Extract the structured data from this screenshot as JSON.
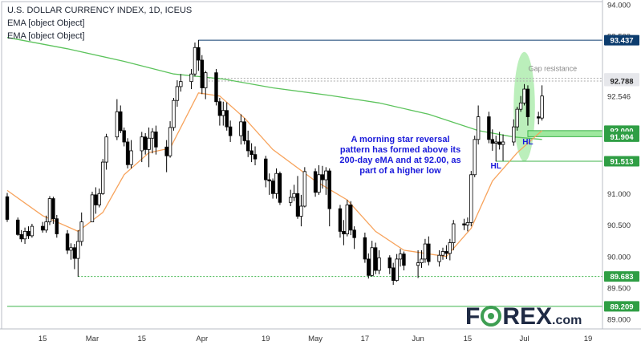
{
  "header": {
    "title": "U.S. DOLLAR CURRENCY INDEX, 1D, ICEUS",
    "indicator_1": "EMA [object Object]",
    "indicator_2": "EMA [object Object]"
  },
  "annotation": "A morning star reversal pattern has formed above its 200-day eMA and at 92.00, as part of a higher low",
  "logo": {
    "part1": "F",
    "part2": "REX",
    "suffix": ".com"
  },
  "colors": {
    "up_candle": "#ffffff",
    "down_candle": "#000000",
    "candle_border": "#000000",
    "ema_fast": "#f7a35c",
    "ema_slow": "#5cc35c",
    "level_line": "#0c3c6e",
    "support_line": "#3cb34a",
    "gap_line": "#aaaaaa",
    "highlight": "#9ee89e",
    "annotation_text": "#1a1adb",
    "logo_green": "#3d9e52"
  },
  "chart_data": {
    "type": "candlestick",
    "y_axis_side": "right",
    "ylim": [
      88.85,
      94.05
    ],
    "y_ticks": [
      "94.000",
      "93.500",
      "92.546",
      "91.000",
      "90.500",
      "90.000",
      "89.500",
      "89.000"
    ],
    "x_ticks": [
      "15",
      "Mar",
      "15",
      "Apr",
      "19",
      "May",
      "17",
      "Jun",
      "15",
      "Jul",
      "19"
    ],
    "x_tick_dates": [
      "2021-02-15",
      "2021-03-01",
      "2021-03-15",
      "2021-04-01",
      "2021-04-19",
      "2021-05-03",
      "2021-05-17",
      "2021-06-01",
      "2021-06-15",
      "2021-07-01",
      "2021-07-19"
    ],
    "price_labels": [
      {
        "value": "93.437",
        "style": "navy"
      },
      {
        "value": "92.832",
        "style": "gray"
      },
      {
        "value": "92.788",
        "style": "gray"
      },
      {
        "value": "92.000",
        "style": "green"
      },
      {
        "value": "91.904",
        "style": "green"
      },
      {
        "value": "91.513",
        "style": "green"
      },
      {
        "value": "89.683",
        "style": "green"
      },
      {
        "value": "89.209",
        "style": "green"
      }
    ],
    "levels": [
      {
        "value": 93.437,
        "start": "2021-03-31",
        "style": "navy"
      },
      {
        "value": 92.832,
        "start": "2021-04-01",
        "style": "gray-dotted"
      },
      {
        "value": 92.788,
        "start": "2021-04-01",
        "style": "gray-dotted"
      },
      {
        "value": 91.513,
        "start": "2021-06-23",
        "style": "green"
      },
      {
        "value": 89.683,
        "start": "2021-02-25",
        "style": "green-dotted"
      },
      {
        "value": 89.209,
        "start": "2021-02-05",
        "style": "green"
      }
    ],
    "support_zone": {
      "top": 92.0,
      "bottom": 91.904,
      "start": "2021-07-02"
    },
    "text_labels": [
      {
        "text": "Gap resistance",
        "date": "2021-07-09",
        "value": 92.95
      },
      {
        "text": "HL",
        "date": "2021-06-23",
        "value": 91.4
      },
      {
        "text": "HL",
        "date": "2021-07-02",
        "value": 91.78
      }
    ],
    "highlight_ellipse": {
      "date": "2021-07-01",
      "value": 92.38,
      "date_start": "2021-06-29",
      "date_end": "2021-07-05"
    },
    "candles": [
      {
        "date": "2021-02-05",
        "o": 90.95,
        "h": 91.01,
        "l": 90.55,
        "c": 90.59
      },
      {
        "date": "2021-02-08",
        "o": 90.58,
        "h": 90.62,
        "l": 90.33,
        "c": 90.35
      },
      {
        "date": "2021-02-09",
        "o": 90.35,
        "h": 90.42,
        "l": 90.23,
        "c": 90.28
      },
      {
        "date": "2021-02-10",
        "o": 90.28,
        "h": 90.46,
        "l": 90.2,
        "c": 90.4
      },
      {
        "date": "2021-02-11",
        "o": 90.4,
        "h": 90.48,
        "l": 90.28,
        "c": 90.33
      },
      {
        "date": "2021-02-12",
        "o": 90.33,
        "h": 90.52,
        "l": 90.3,
        "c": 90.48
      },
      {
        "date": "2021-02-15",
        "o": 90.48,
        "h": 90.55,
        "l": 90.38,
        "c": 90.42
      },
      {
        "date": "2021-02-16",
        "o": 90.42,
        "h": 90.65,
        "l": 90.38,
        "c": 90.55
      },
      {
        "date": "2021-02-17",
        "o": 90.55,
        "h": 90.96,
        "l": 90.5,
        "c": 90.92
      },
      {
        "date": "2021-02-18",
        "o": 90.92,
        "h": 90.95,
        "l": 90.52,
        "c": 90.6
      },
      {
        "date": "2021-02-19",
        "o": 90.6,
        "h": 90.66,
        "l": 90.3,
        "c": 90.36
      },
      {
        "date": "2021-02-22",
        "o": 90.36,
        "h": 90.42,
        "l": 90.04,
        "c": 90.1
      },
      {
        "date": "2021-02-23",
        "o": 90.1,
        "h": 90.21,
        "l": 89.95,
        "c": 90.14
      },
      {
        "date": "2021-02-24",
        "o": 90.14,
        "h": 90.2,
        "l": 89.8,
        "c": 89.97
      },
      {
        "date": "2021-02-25",
        "o": 89.97,
        "h": 90.42,
        "l": 89.68,
        "c": 90.24
      },
      {
        "date": "2021-02-26",
        "o": 90.24,
        "h": 90.7,
        "l": 90.17,
        "c": 90.55
      },
      {
        "date": "2021-03-01",
        "o": 90.55,
        "h": 91.03,
        "l": 90.58,
        "c": 90.98
      },
      {
        "date": "2021-03-02",
        "o": 90.98,
        "h": 91.1,
        "l": 90.68,
        "c": 90.82
      },
      {
        "date": "2021-03-03",
        "o": 90.82,
        "h": 91.08,
        "l": 90.78,
        "c": 91.0
      },
      {
        "date": "2021-03-04",
        "o": 91.0,
        "h": 91.55,
        "l": 90.98,
        "c": 91.5
      },
      {
        "date": "2021-03-05",
        "o": 91.5,
        "h": 91.95,
        "l": 91.38,
        "c": 91.9
      },
      {
        "date": "2021-03-08",
        "o": 91.9,
        "h": 92.5,
        "l": 91.85,
        "c": 92.3
      },
      {
        "date": "2021-03-09",
        "o": 92.3,
        "h": 92.4,
        "l": 91.96,
        "c": 92.0
      },
      {
        "date": "2021-03-10",
        "o": 92.0,
        "h": 92.05,
        "l": 91.75,
        "c": 91.82
      },
      {
        "date": "2021-03-11",
        "o": 91.82,
        "h": 91.88,
        "l": 91.4,
        "c": 91.46
      },
      {
        "date": "2021-03-12",
        "o": 91.46,
        "h": 91.85,
        "l": 91.4,
        "c": 91.68
      },
      {
        "date": "2021-03-15",
        "o": 91.68,
        "h": 91.98,
        "l": 91.5,
        "c": 91.9
      },
      {
        "date": "2021-03-16",
        "o": 91.9,
        "h": 91.96,
        "l": 91.62,
        "c": 91.7
      },
      {
        "date": "2021-03-17",
        "o": 91.7,
        "h": 92.05,
        "l": 91.42,
        "c": 91.88
      },
      {
        "date": "2021-03-18",
        "o": 91.88,
        "h": 92.04,
        "l": 91.64,
        "c": 91.98
      },
      {
        "date": "2021-03-19",
        "o": 91.98,
        "h": 92.08,
        "l": 91.62,
        "c": 91.74
      },
      {
        "date": "2021-03-22",
        "o": 91.74,
        "h": 91.85,
        "l": 91.34,
        "c": 91.6
      },
      {
        "date": "2021-03-23",
        "o": 91.6,
        "h": 92.15,
        "l": 91.57,
        "c": 92.05
      },
      {
        "date": "2021-03-24",
        "o": 92.05,
        "h": 92.52,
        "l": 92.0,
        "c": 92.48
      },
      {
        "date": "2021-03-25",
        "o": 92.48,
        "h": 92.8,
        "l": 92.38,
        "c": 92.7
      },
      {
        "date": "2021-03-26",
        "o": 92.7,
        "h": 92.9,
        "l": 92.62,
        "c": 92.78
      },
      {
        "date": "2021-03-29",
        "o": 92.78,
        "h": 92.98,
        "l": 92.66,
        "c": 92.9
      },
      {
        "date": "2021-03-30",
        "o": 92.9,
        "h": 93.4,
        "l": 92.86,
        "c": 93.32
      },
      {
        "date": "2021-03-31",
        "o": 93.32,
        "h": 93.44,
        "l": 92.95,
        "c": 93.12
      },
      {
        "date": "2021-04-01",
        "o": 93.12,
        "h": 93.2,
        "l": 92.58,
        "c": 92.68
      },
      {
        "date": "2021-04-02",
        "o": 92.68,
        "h": 92.95,
        "l": 92.5,
        "c": 92.92
      },
      {
        "date": "2021-04-05",
        "o": 92.92,
        "h": 92.98,
        "l": 92.4,
        "c": 92.46
      },
      {
        "date": "2021-04-06",
        "o": 92.46,
        "h": 92.52,
        "l": 92.08,
        "c": 92.24
      },
      {
        "date": "2021-04-07",
        "o": 92.24,
        "h": 92.46,
        "l": 92.08,
        "c": 92.32
      },
      {
        "date": "2021-04-08",
        "o": 92.32,
        "h": 92.45,
        "l": 92.0,
        "c": 92.06
      },
      {
        "date": "2021-04-09",
        "o": 92.06,
        "h": 92.16,
        "l": 91.82,
        "c": 91.92
      },
      {
        "date": "2021-04-12",
        "o": 91.92,
        "h": 92.26,
        "l": 91.78,
        "c": 92.14
      },
      {
        "date": "2021-04-13",
        "o": 92.14,
        "h": 92.2,
        "l": 91.78,
        "c": 91.84
      },
      {
        "date": "2021-04-14",
        "o": 91.84,
        "h": 92.0,
        "l": 91.58,
        "c": 91.68
      },
      {
        "date": "2021-04-15",
        "o": 91.68,
        "h": 91.8,
        "l": 91.5,
        "c": 91.62
      },
      {
        "date": "2021-04-16",
        "o": 91.62,
        "h": 91.75,
        "l": 91.45,
        "c": 91.55
      },
      {
        "date": "2021-04-19",
        "o": 91.55,
        "h": 91.6,
        "l": 91.1,
        "c": 91.22
      },
      {
        "date": "2021-04-20",
        "o": 91.22,
        "h": 91.32,
        "l": 90.98,
        "c": 91.2
      },
      {
        "date": "2021-04-21",
        "o": 91.2,
        "h": 91.24,
        "l": 90.92,
        "c": 91.0
      },
      {
        "date": "2021-04-22",
        "o": 91.0,
        "h": 91.4,
        "l": 90.92,
        "c": 91.32
      },
      {
        "date": "2021-04-23",
        "o": 91.32,
        "h": 91.35,
        "l": 90.82,
        "c": 90.86
      },
      {
        "date": "2021-04-26",
        "o": 90.86,
        "h": 91.06,
        "l": 90.8,
        "c": 90.94
      },
      {
        "date": "2021-04-27",
        "o": 90.94,
        "h": 91.14,
        "l": 90.88,
        "c": 91.0
      },
      {
        "date": "2021-04-28",
        "o": 91.0,
        "h": 91.28,
        "l": 90.6,
        "c": 90.64
      },
      {
        "date": "2021-04-29",
        "o": 90.64,
        "h": 90.98,
        "l": 90.48,
        "c": 90.8
      },
      {
        "date": "2021-04-30",
        "o": 90.8,
        "h": 91.42,
        "l": 90.78,
        "c": 91.35
      },
      {
        "date": "2021-05-03",
        "o": 91.35,
        "h": 91.4,
        "l": 90.95,
        "c": 91.02
      },
      {
        "date": "2021-05-04",
        "o": 91.02,
        "h": 91.45,
        "l": 90.98,
        "c": 91.3
      },
      {
        "date": "2021-05-05",
        "o": 91.3,
        "h": 91.44,
        "l": 91.08,
        "c": 91.22
      },
      {
        "date": "2021-05-06",
        "o": 91.22,
        "h": 91.42,
        "l": 90.98,
        "c": 91.36
      },
      {
        "date": "2021-05-07",
        "o": 91.36,
        "h": 91.4,
        "l": 90.48,
        "c": 90.76
      },
      {
        "date": "2021-05-10",
        "o": 90.76,
        "h": 90.82,
        "l": 90.3,
        "c": 90.4
      },
      {
        "date": "2021-05-11",
        "o": 90.4,
        "h": 90.58,
        "l": 90.18,
        "c": 90.36
      },
      {
        "date": "2021-05-12",
        "o": 90.36,
        "h": 90.9,
        "l": 90.32,
        "c": 90.82
      },
      {
        "date": "2021-05-13",
        "o": 90.82,
        "h": 90.88,
        "l": 90.34,
        "c": 90.42
      },
      {
        "date": "2021-05-14",
        "o": 90.42,
        "h": 90.48,
        "l": 90.12,
        "c": 90.3
      },
      {
        "date": "2021-05-17",
        "o": 90.3,
        "h": 90.38,
        "l": 89.9,
        "c": 89.96
      },
      {
        "date": "2021-05-18",
        "o": 89.96,
        "h": 90.05,
        "l": 89.65,
        "c": 89.7
      },
      {
        "date": "2021-05-19",
        "o": 89.7,
        "h": 90.25,
        "l": 89.68,
        "c": 90.14
      },
      {
        "date": "2021-05-20",
        "o": 90.14,
        "h": 90.22,
        "l": 89.72,
        "c": 89.78
      },
      {
        "date": "2021-05-21",
        "o": 89.78,
        "h": 90.1,
        "l": 89.72,
        "c": 89.98
      },
      {
        "date": "2021-05-24",
        "o": 89.98,
        "h": 90.02,
        "l": 89.72,
        "c": 89.82
      },
      {
        "date": "2021-05-25",
        "o": 89.82,
        "h": 89.9,
        "l": 89.55,
        "c": 89.62
      },
      {
        "date": "2021-05-26",
        "o": 89.62,
        "h": 90.04,
        "l": 89.6,
        "c": 89.96
      },
      {
        "date": "2021-05-27",
        "o": 89.96,
        "h": 90.12,
        "l": 89.84,
        "c": 90.04
      },
      {
        "date": "2021-05-28",
        "o": 90.04,
        "h": 90.08,
        "l": 89.78,
        "c": 89.86
      },
      {
        "date": "2021-06-01",
        "o": 89.86,
        "h": 90.1,
        "l": 89.66,
        "c": 89.9
      },
      {
        "date": "2021-06-02",
        "o": 89.9,
        "h": 90.1,
        "l": 89.82,
        "c": 89.96
      },
      {
        "date": "2021-06-03",
        "o": 89.96,
        "h": 90.28,
        "l": 89.9,
        "c": 90.2
      },
      {
        "date": "2021-06-04",
        "o": 90.2,
        "h": 90.32,
        "l": 89.86,
        "c": 89.92
      },
      {
        "date": "2021-06-07",
        "o": 89.92,
        "h": 90.1,
        "l": 89.84,
        "c": 90.02
      },
      {
        "date": "2021-06-08",
        "o": 90.02,
        "h": 90.14,
        "l": 89.95,
        "c": 90.08
      },
      {
        "date": "2021-06-09",
        "o": 90.08,
        "h": 90.18,
        "l": 89.96,
        "c": 90.05
      },
      {
        "date": "2021-06-10",
        "o": 90.05,
        "h": 90.28,
        "l": 89.94,
        "c": 90.22
      },
      {
        "date": "2021-06-11",
        "o": 90.22,
        "h": 90.58,
        "l": 90.1,
        "c": 90.52
      },
      {
        "date": "2021-06-14",
        "o": 90.52,
        "h": 90.6,
        "l": 90.42,
        "c": 90.5
      },
      {
        "date": "2021-06-15",
        "o": 90.5,
        "h": 90.62,
        "l": 90.4,
        "c": 90.54
      },
      {
        "date": "2021-06-16",
        "o": 90.54,
        "h": 91.36,
        "l": 90.48,
        "c": 91.3
      },
      {
        "date": "2021-06-17",
        "o": 91.3,
        "h": 91.92,
        "l": 91.26,
        "c": 91.86
      },
      {
        "date": "2021-06-18",
        "o": 91.86,
        "h": 92.4,
        "l": 91.78,
        "c": 92.22
      },
      {
        "date": "2021-06-21",
        "o": 92.22,
        "h": 92.3,
        "l": 91.8,
        "c": 91.86
      },
      {
        "date": "2021-06-22",
        "o": 91.86,
        "h": 92.02,
        "l": 91.68,
        "c": 91.8
      },
      {
        "date": "2021-06-23",
        "o": 91.8,
        "h": 91.92,
        "l": 91.51,
        "c": 91.82
      },
      {
        "date": "2021-06-24",
        "o": 91.82,
        "h": 91.98,
        "l": 91.7,
        "c": 91.78
      },
      {
        "date": "2021-06-25",
        "o": 91.78,
        "h": 91.94,
        "l": 91.52,
        "c": 91.82
      },
      {
        "date": "2021-06-28",
        "o": 91.82,
        "h": 92.18,
        "l": 91.76,
        "c": 92.06
      },
      {
        "date": "2021-06-29",
        "o": 92.06,
        "h": 92.38,
        "l": 92.0,
        "c": 92.34
      },
      {
        "date": "2021-06-30",
        "o": 92.34,
        "h": 92.55,
        "l": 92.3,
        "c": 92.44
      },
      {
        "date": "2021-07-01",
        "o": 92.44,
        "h": 92.74,
        "l": 92.4,
        "c": 92.66
      },
      {
        "date": "2021-07-02",
        "o": 92.66,
        "h": 92.72,
        "l": 92.08,
        "c": 92.22
      },
      {
        "date": "2021-07-05",
        "o": 92.22,
        "h": 92.3,
        "l": 92.1,
        "c": 92.2
      },
      {
        "date": "2021-07-06",
        "o": 92.2,
        "h": 92.72,
        "l": 92.16,
        "c": 92.55
      }
    ],
    "ema_fast_values": {
      "dates": [
        "2021-02-05",
        "2021-02-15",
        "2021-02-25",
        "2021-03-04",
        "2021-03-10",
        "2021-03-17",
        "2021-03-23",
        "2021-03-31",
        "2021-04-06",
        "2021-04-13",
        "2021-04-21",
        "2021-05-03",
        "2021-05-12",
        "2021-05-20",
        "2021-05-28",
        "2021-06-09",
        "2021-06-16",
        "2021-06-22",
        "2021-06-29",
        "2021-07-06"
      ],
      "values": [
        91.05,
        90.65,
        90.4,
        90.7,
        91.3,
        91.65,
        91.72,
        92.6,
        92.55,
        92.2,
        91.7,
        91.2,
        90.9,
        90.4,
        90.1,
        90.0,
        90.45,
        91.2,
        91.65,
        92.0
      ]
    },
    "ema_slow_values": {
      "dates": [
        "2021-02-05",
        "2021-02-22",
        "2021-03-10",
        "2021-03-24",
        "2021-04-07",
        "2021-04-21",
        "2021-05-07",
        "2021-05-21",
        "2021-06-04",
        "2021-06-18",
        "2021-06-28",
        "2021-07-06"
      ],
      "values": [
        93.48,
        93.3,
        93.1,
        92.9,
        92.82,
        92.68,
        92.56,
        92.44,
        92.26,
        92.0,
        91.9,
        91.86
      ]
    }
  }
}
